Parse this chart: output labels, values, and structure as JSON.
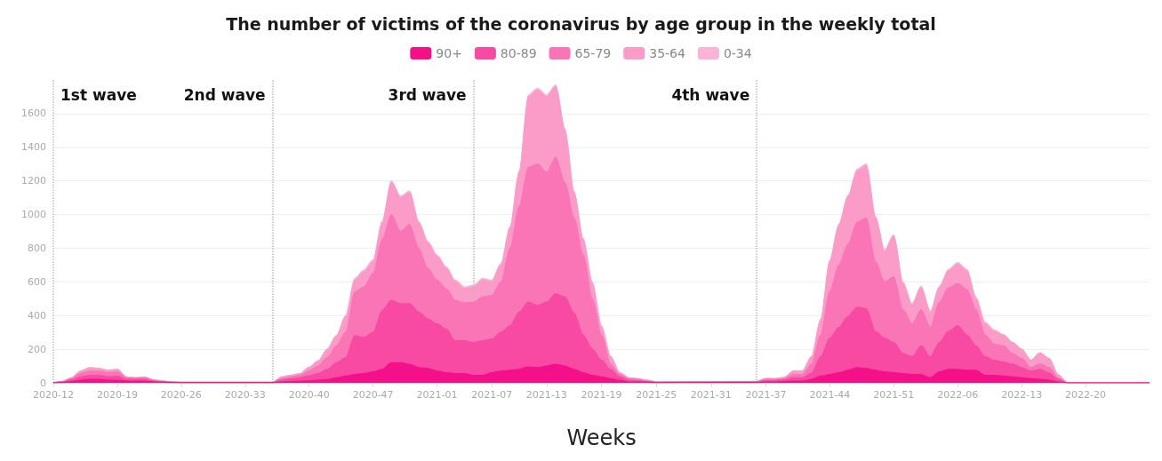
{
  "chart_data": {
    "type": "area",
    "stacked": true,
    "title": "The number of victims of the coronavirus by age group in the weekly total",
    "xlabel": "Weeks",
    "legend": "top",
    "grid": "y",
    "x": [
      "2020-03-16",
      "2020-03-23",
      "2020-03-30",
      "2020-04-06",
      "2020-04-13",
      "2020-04-20",
      "2020-04-27",
      "2020-05-04",
      "2020-05-11",
      "2020-05-18",
      "2020-05-25",
      "2020-06-01",
      "2020-06-08",
      "2020-06-15",
      "2020-06-22",
      "2020-08-31",
      "2020-09-07",
      "2020-09-14",
      "2020-09-21",
      "2020-09-28",
      "2020-10-05",
      "2020-10-12",
      "2020-10-19",
      "2020-10-26",
      "2020-11-02",
      "2020-11-09",
      "2020-11-16",
      "2020-11-23",
      "2020-11-30",
      "2020-12-07",
      "2020-12-14",
      "2020-12-21",
      "2020-12-28",
      "2021-01-04",
      "2021-01-11",
      "2021-01-18",
      "2021-01-25",
      "2021-02-01",
      "2021-02-08",
      "2021-02-15",
      "2021-02-22",
      "2021-03-01",
      "2021-03-08",
      "2021-03-15",
      "2021-03-22",
      "2021-03-29",
      "2021-04-05",
      "2021-04-12",
      "2021-04-19",
      "2021-04-26",
      "2021-05-03",
      "2021-05-10",
      "2021-05-17",
      "2021-05-24",
      "2021-05-31",
      "2021-06-07",
      "2021-06-14",
      "2021-06-21",
      "2021-09-06",
      "2021-09-13",
      "2021-09-20",
      "2021-09-27",
      "2021-10-04",
      "2021-10-11",
      "2021-10-18",
      "2021-10-25",
      "2021-11-01",
      "2021-11-08",
      "2021-11-15",
      "2021-11-22",
      "2021-11-29",
      "2021-12-06",
      "2021-12-13",
      "2021-12-20",
      "2021-12-27",
      "2022-01-03",
      "2022-01-10",
      "2022-01-17",
      "2022-01-24",
      "2022-01-31",
      "2022-02-07",
      "2022-02-14",
      "2022-02-21",
      "2022-02-28",
      "2022-03-07",
      "2022-03-14",
      "2022-03-21",
      "2022-03-28",
      "2022-04-04",
      "2022-04-11",
      "2022-04-18",
      "2022-04-25",
      "2022-05-02",
      "2022-07-04"
    ],
    "series": [
      {
        "name": "90+",
        "color": "#f5108a",
        "values": [
          0,
          2,
          8,
          15,
          20,
          20,
          15,
          15,
          10,
          10,
          10,
          5,
          3,
          2,
          1,
          1,
          5,
          8,
          10,
          12,
          15,
          20,
          30,
          40,
          50,
          55,
          65,
          80,
          120,
          120,
          110,
          90,
          85,
          70,
          60,
          55,
          55,
          45,
          45,
          60,
          70,
          75,
          80,
          95,
          90,
          100,
          110,
          100,
          80,
          60,
          45,
          35,
          25,
          15,
          5,
          5,
          3,
          1,
          2,
          5,
          5,
          8,
          10,
          10,
          20,
          40,
          50,
          60,
          75,
          90,
          85,
          75,
          65,
          60,
          55,
          50,
          50,
          30,
          65,
          80,
          80,
          75,
          75,
          45,
          45,
          40,
          35,
          30,
          25,
          20,
          15,
          5,
          0,
          0
        ]
      },
      {
        "name": "80-89",
        "color": "#f84aa2",
        "values": [
          0,
          3,
          10,
          20,
          25,
          25,
          20,
          25,
          10,
          10,
          10,
          5,
          3,
          2,
          1,
          1,
          10,
          15,
          20,
          30,
          40,
          60,
          90,
          110,
          230,
          215,
          235,
          350,
          370,
          350,
          360,
          330,
          295,
          280,
          260,
          195,
          195,
          195,
          205,
          200,
          230,
          265,
          340,
          385,
          370,
          380,
          420,
          410,
          335,
          225,
          155,
          99,
          55,
          20,
          10,
          8,
          5,
          2,
          3,
          8,
          8,
          10,
          20,
          20,
          38,
          115,
          215,
          270,
          320,
          360,
          355,
          230,
          200,
          180,
          120,
          105,
          170,
          125,
          175,
          225,
          260,
          210,
          145,
          110,
          89,
          83,
          77,
          60,
          45,
          60,
          43,
          15,
          0,
          0
        ]
      },
      {
        "name": "65-79",
        "color": "#fa75b6",
        "values": [
          0,
          2,
          8,
          20,
          25,
          25,
          25,
          25,
          10,
          8,
          10,
          5,
          3,
          1,
          1,
          1,
          10,
          12,
          15,
          30,
          45,
          70,
          100,
          150,
          260,
          300,
          350,
          420,
          510,
          430,
          470,
          380,
          300,
          260,
          240,
          240,
          225,
          240,
          260,
          260,
          300,
          460,
          630,
          800,
          840,
          770,
          810,
          680,
          565,
          475,
          300,
          151,
          32,
          15,
          10,
          7,
          4,
          1,
          2,
          8,
          8,
          8,
          20,
          20,
          54,
          130,
          280,
          370,
          430,
          505,
          540,
          415,
          335,
          390,
          260,
          195,
          215,
          175,
          240,
          260,
          250,
          270,
          215,
          130,
          96,
          97,
          63,
          55,
          20,
          32,
          32,
          10,
          0,
          0
        ]
      },
      {
        "name": "35-64",
        "color": "#fb9cc8",
        "values": [
          0,
          1,
          4,
          15,
          20,
          15,
          15,
          15,
          5,
          2,
          5,
          3,
          1,
          0,
          0,
          0,
          10,
          10,
          10,
          20,
          30,
          50,
          60,
          90,
          70,
          90,
          70,
          100,
          190,
          200,
          190,
          150,
          150,
          140,
          120,
          110,
          85,
          90,
          100,
          80,
          100,
          120,
          200,
          420,
          440,
          450,
          420,
          310,
          150,
          90,
          90,
          45,
          43,
          10,
          5,
          5,
          3,
          1,
          1,
          5,
          4,
          6,
          20,
          20,
          43,
          85,
          175,
          235,
          280,
          305,
          310,
          260,
          180,
          240,
          155,
          110,
          130,
          85,
          85,
          100,
          115,
          110,
          65,
          65,
          75,
          65,
          65,
          55,
          44,
          65,
          55,
          18,
          0,
          0
        ]
      },
      {
        "name": "0-34",
        "color": "#fcb3d5",
        "values": [
          0,
          0,
          0,
          0,
          0,
          0,
          0,
          0,
          0,
          0,
          0,
          0,
          0,
          0,
          0,
          0,
          0,
          0,
          0,
          0,
          0,
          0,
          0,
          10,
          10,
          10,
          10,
          10,
          10,
          10,
          10,
          10,
          10,
          10,
          10,
          10,
          10,
          10,
          10,
          10,
          10,
          10,
          10,
          10,
          10,
          10,
          10,
          10,
          10,
          10,
          10,
          10,
          0,
          0,
          0,
          0,
          0,
          0,
          0,
          0,
          0,
          0,
          0,
          0,
          0,
          10,
          10,
          10,
          10,
          10,
          10,
          10,
          10,
          10,
          10,
          10,
          10,
          10,
          10,
          10,
          10,
          10,
          10,
          10,
          10,
          0,
          0,
          0,
          0,
          0,
          0,
          0,
          0,
          0
        ]
      }
    ],
    "xlim": [
      "2020-03-16",
      "2022-07-04"
    ],
    "xticks": [
      {
        "value": "2020-03-16",
        "label": "2020-12"
      },
      {
        "value": "2020-05-04",
        "label": "2020-19"
      },
      {
        "value": "2020-06-22",
        "label": "2020-26"
      },
      {
        "value": "2020-08-10",
        "label": "2020-33"
      },
      {
        "value": "2020-09-28",
        "label": "2020-40"
      },
      {
        "value": "2020-11-16",
        "label": "2020-47"
      },
      {
        "value": "2021-01-04",
        "label": "2021-01"
      },
      {
        "value": "2021-02-15",
        "label": "2021-07"
      },
      {
        "value": "2021-03-29",
        "label": "2021-13"
      },
      {
        "value": "2021-05-10",
        "label": "2021-19"
      },
      {
        "value": "2021-06-21",
        "label": "2021-25"
      },
      {
        "value": "2021-08-02",
        "label": "2021-31"
      },
      {
        "value": "2021-09-13",
        "label": "2021-37"
      },
      {
        "value": "2021-11-01",
        "label": "2021-44"
      },
      {
        "value": "2021-12-20",
        "label": "2021-51"
      },
      {
        "value": "2022-02-07",
        "label": "2022-06"
      },
      {
        "value": "2022-03-28",
        "label": "2022-13"
      },
      {
        "value": "2022-05-16",
        "label": "2022-20"
      }
    ],
    "ylim": [
      0,
      1800
    ],
    "yticks": [
      0,
      200,
      400,
      600,
      800,
      1000,
      1200,
      1400,
      1600
    ],
    "ref_lines": [
      {
        "axis": "x",
        "value": "2020-03-16",
        "label": "1st wave",
        "color": "#bbbbbb",
        "line_style": "dotted"
      },
      {
        "axis": "x",
        "value": "2020-08-31",
        "label": "2nd wave",
        "color": "#bbbbbb",
        "line_style": "dotted"
      },
      {
        "axis": "x",
        "value": "2021-02-01",
        "label": "3rd wave",
        "color": "#bbbbbb",
        "line_style": "dotted"
      },
      {
        "axis": "x",
        "value": "2021-09-06",
        "label": "4th wave",
        "color": "#bbbbbb",
        "line_style": "dotted"
      }
    ]
  }
}
